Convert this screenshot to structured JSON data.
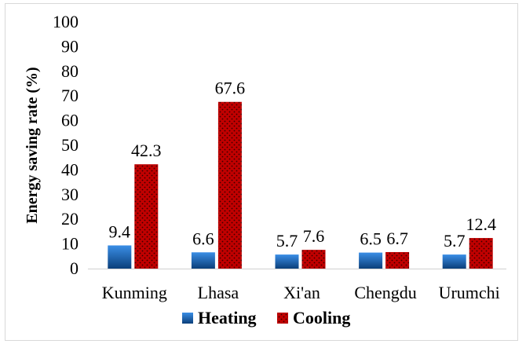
{
  "chart_data": {
    "type": "bar",
    "title": "",
    "xlabel": "",
    "ylabel": "Energy saving rate (%)",
    "ylim": [
      0,
      100
    ],
    "yticks": [
      0,
      10,
      20,
      30,
      40,
      50,
      60,
      70,
      80,
      90,
      100
    ],
    "categories": [
      "Kunming",
      "Lhasa",
      "Xi'an",
      "Chengdu",
      "Urumchi"
    ],
    "series": [
      {
        "name": "Heating",
        "values": [
          9.4,
          6.6,
          5.7,
          6.5,
          5.7
        ],
        "labels": [
          "9.4",
          "6.6",
          "5.7",
          "6.5",
          "5.7"
        ],
        "color": "#1f6fc5",
        "pattern": "gradient-blue"
      },
      {
        "name": "Cooling",
        "values": [
          42.3,
          67.6,
          7.6,
          6.7,
          12.4
        ],
        "labels": [
          "42.3",
          "67.6",
          "7.6",
          "6.7",
          "12.4"
        ],
        "color": "#c00000",
        "pattern": "red-dotted"
      }
    ],
    "grid": false,
    "legend_position": "bottom"
  }
}
